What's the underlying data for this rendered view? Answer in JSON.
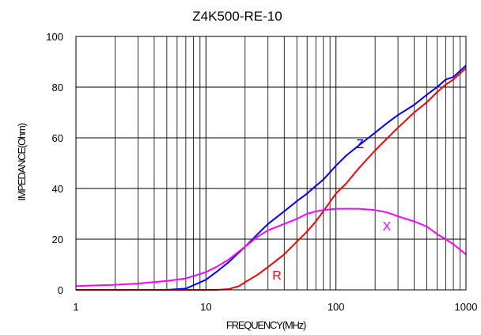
{
  "chart_data": {
    "type": "line",
    "title": "Z4K500-RE-10",
    "xlabel": "FREQUENCY(MHz)",
    "ylabel": "IMPEDANCE(Ohm)",
    "xscale": "log",
    "xlim": [
      1,
      1000
    ],
    "ylim": [
      0,
      100
    ],
    "x_ticks": [
      "1",
      "10",
      "100",
      "1000"
    ],
    "y_ticks": [
      "0",
      "20",
      "40",
      "60",
      "80",
      "100"
    ],
    "grid": true,
    "series": [
      {
        "name": "Z",
        "color": "#0000ff",
        "x": [
          1,
          2,
          3,
          5,
          7,
          10,
          12,
          15,
          20,
          25,
          30,
          40,
          50,
          60,
          70,
          80,
          100,
          120,
          150,
          200,
          250,
          300,
          400,
          500,
          600,
          700,
          800,
          1000
        ],
        "y": [
          0,
          0,
          0,
          0,
          0.5,
          4,
          7,
          11,
          17,
          22,
          26,
          31,
          35,
          38,
          41,
          43.5,
          49,
          53,
          57,
          62,
          66,
          69,
          73,
          77,
          80,
          83,
          84,
          88.5
        ]
      },
      {
        "name": "R",
        "color": "#ff0000",
        "x": [
          1,
          3,
          5,
          10,
          12,
          15,
          18,
          20,
          25,
          30,
          40,
          50,
          60,
          70,
          80,
          100,
          120,
          150,
          200,
          250,
          300,
          400,
          500,
          600,
          700,
          800,
          1000
        ],
        "y": [
          0,
          0,
          0,
          0,
          0,
          0.3,
          1.5,
          3,
          6,
          9,
          14,
          19,
          23,
          27,
          31,
          38,
          42,
          48,
          55,
          60,
          64,
          70,
          74,
          78,
          81,
          83,
          87.5
        ]
      },
      {
        "name": "X",
        "color": "#ff00ff",
        "x": [
          1,
          2,
          3,
          5,
          7,
          10,
          12,
          15,
          20,
          25,
          30,
          40,
          50,
          60,
          70,
          80,
          100,
          120,
          150,
          200,
          250,
          300,
          400,
          500,
          600,
          700,
          800,
          1000
        ],
        "y": [
          1.5,
          2,
          2.5,
          3.5,
          4.5,
          7,
          9,
          12,
          17,
          21,
          23.5,
          26,
          28,
          30,
          31,
          31.5,
          32,
          32,
          32,
          31.5,
          30.5,
          29,
          27,
          25,
          22,
          20,
          18,
          14
        ]
      }
    ]
  }
}
